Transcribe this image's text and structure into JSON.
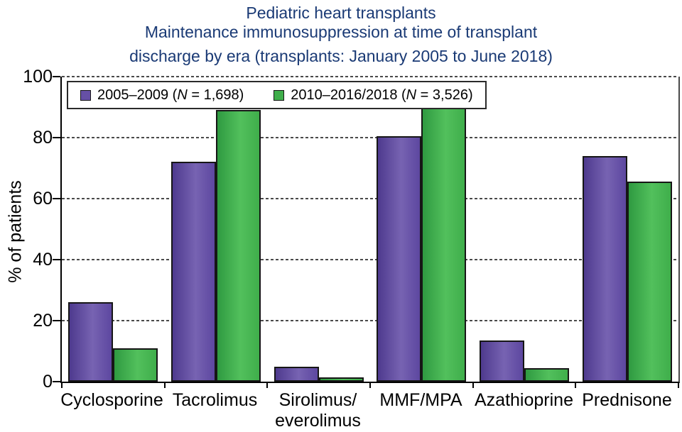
{
  "title": {
    "line1": "Pediatric heart transplants",
    "line2": "Maintenance immunosuppression at time of transplant",
    "line3": "discharge by era (transplants: January 2005 to June 2018)"
  },
  "colors": {
    "title_text": "#1a3a75",
    "axis": "#000000",
    "bar_border": "#161616",
    "series1_solid": "#6650a5",
    "series1_gradient": [
      "#4e3a8e",
      "#7763b2",
      "#5d47a0"
    ],
    "series2_solid": "#3fae4b",
    "series2_gradient": [
      "#2f9a41",
      "#52c05c",
      "#3fae4b"
    ]
  },
  "chart_data": {
    "type": "bar",
    "title": "Pediatric heart transplants — Maintenance immunosuppression at time of transplant discharge by era (transplants: January 2005 to June 2018)",
    "xlabel": "",
    "ylabel": "% of patients",
    "ylim": [
      0,
      100
    ],
    "yticks": [
      0,
      20,
      40,
      60,
      80,
      100
    ],
    "grid": "horizontal-dashed",
    "legend_position": "top-left-inside",
    "categories": [
      "Cyclosporine",
      "Tacrolimus",
      "Sirolimus/everolimus",
      "MMF/MPA",
      "Azathioprine",
      "Prednisone"
    ],
    "category_display": [
      [
        "Cyclosporine"
      ],
      [
        "Tacrolimus"
      ],
      [
        "Sirolimus/",
        "everolimus"
      ],
      [
        "MMF/MPA"
      ],
      [
        "Azathioprine"
      ],
      [
        "Prednisone"
      ]
    ],
    "series": [
      {
        "era": "2005–2009",
        "n": "1,698",
        "legend_label": "2005–2009 (N = 1,698)",
        "values": [
          26,
          72,
          5,
          80.5,
          13.5,
          74
        ]
      },
      {
        "era": "2010–2016/2018",
        "n": "3,526",
        "legend_label": "2010–2016/2018 (N = 3,526)",
        "values": [
          11,
          89,
          1.5,
          94,
          4.5,
          65.5
        ]
      }
    ]
  }
}
